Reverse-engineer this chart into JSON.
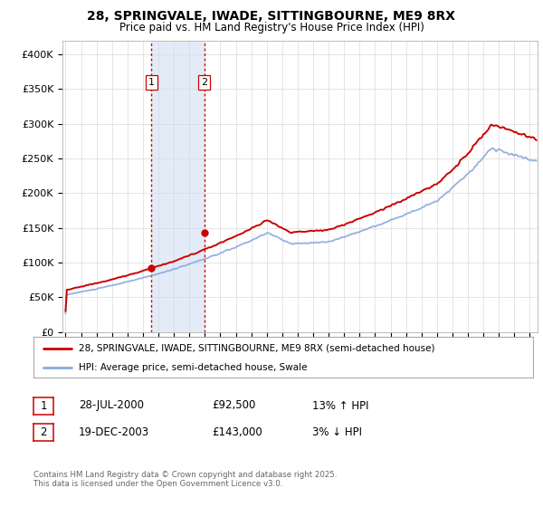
{
  "title1": "28, SPRINGVALE, IWADE, SITTINGBOURNE, ME9 8RX",
  "title2": "Price paid vs. HM Land Registry's House Price Index (HPI)",
  "ylabel_ticks": [
    "£0",
    "£50K",
    "£100K",
    "£150K",
    "£200K",
    "£250K",
    "£300K",
    "£350K",
    "£400K"
  ],
  "ytick_vals": [
    0,
    50000,
    100000,
    150000,
    200000,
    250000,
    300000,
    350000,
    400000
  ],
  "ylim": [
    0,
    420000
  ],
  "xlim_start": 1994.8,
  "xlim_end": 2025.5,
  "transaction1_date": 2000.55,
  "transaction1_price": 92500,
  "transaction1_label": "1",
  "transaction2_date": 2003.96,
  "transaction2_price": 143000,
  "transaction2_label": "2",
  "line_color_property": "#cc0000",
  "line_color_hpi": "#88aadd",
  "vline_color": "#cc0000",
  "shade_color": "#ccddf0",
  "legend_label1": "28, SPRINGVALE, IWADE, SITTINGBOURNE, ME9 8RX (semi-detached house)",
  "legend_label2": "HPI: Average price, semi-detached house, Swale",
  "table_row1": [
    "1",
    "28-JUL-2000",
    "£92,500",
    "13% ↑ HPI"
  ],
  "table_row2": [
    "2",
    "19-DEC-2003",
    "£143,000",
    "3% ↓ HPI"
  ],
  "footer": "Contains HM Land Registry data © Crown copyright and database right 2025.\nThis data is licensed under the Open Government Licence v3.0.",
  "background_color": "#ffffff",
  "grid_color": "#e0e0e0",
  "xtick_years": [
    1995,
    1996,
    1997,
    1998,
    1999,
    2000,
    2001,
    2002,
    2003,
    2004,
    2005,
    2006,
    2007,
    2008,
    2009,
    2010,
    2011,
    2012,
    2013,
    2014,
    2015,
    2016,
    2017,
    2018,
    2019,
    2020,
    2021,
    2022,
    2023,
    2024,
    2025
  ]
}
